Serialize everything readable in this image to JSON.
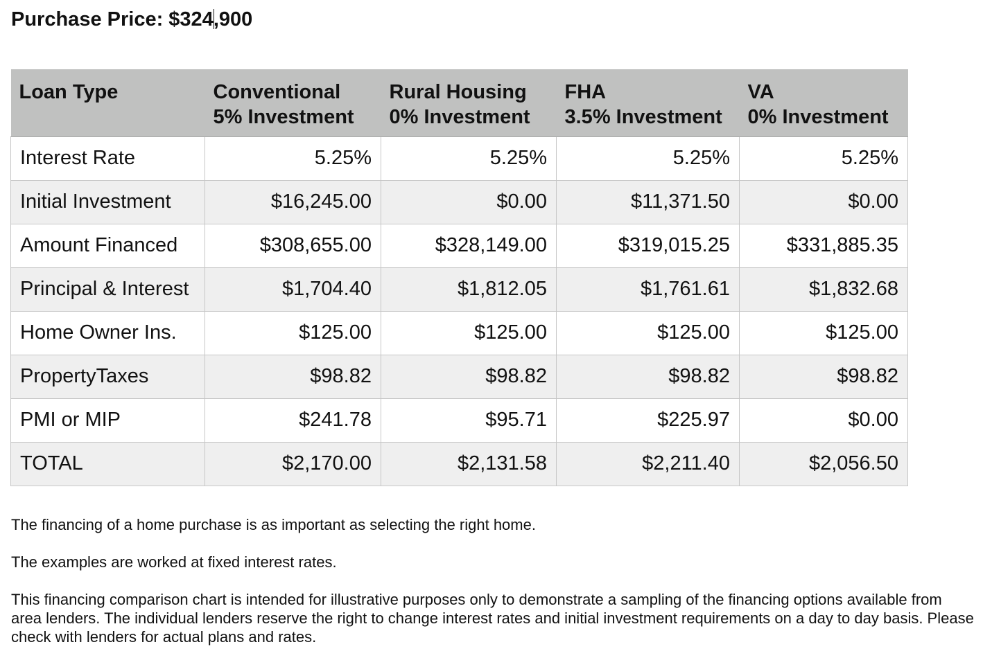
{
  "title": {
    "before_caret": "Purchase Price: $324",
    "after_caret": ",900"
  },
  "table": {
    "header_label": "Loan Type",
    "columns": [
      {
        "name": "Conventional",
        "investment": "5% Investment"
      },
      {
        "name": "Rural Housing",
        "investment": "0% Investment"
      },
      {
        "name": "FHA",
        "investment": "3.5% Investment"
      },
      {
        "name": "VA",
        "investment": "0% Investment"
      }
    ],
    "rows": [
      {
        "label": "Interest Rate",
        "values": [
          "5.25%",
          "5.25%",
          "5.25%",
          "5.25%"
        ]
      },
      {
        "label": "Initial Investment",
        "values": [
          "$16,245.00",
          "$0.00",
          "$11,371.50",
          "$0.00"
        ]
      },
      {
        "label": "Amount Financed",
        "values": [
          "$308,655.00",
          "$328,149.00",
          "$319,015.25",
          "$331,885.35"
        ]
      },
      {
        "label": "Principal & Interest",
        "values": [
          "$1,704.40",
          "$1,812.05",
          "$1,761.61",
          "$1,832.68"
        ]
      },
      {
        "label": "Home Owner Ins.",
        "values": [
          "$125.00",
          "$125.00",
          "$125.00",
          "$125.00"
        ]
      },
      {
        "label": "PropertyTaxes",
        "values": [
          "$98.82",
          "$98.82",
          "$98.82",
          "$98.82"
        ]
      },
      {
        "label": "PMI or MIP",
        "values": [
          "$241.78",
          "$95.71",
          "$225.97",
          "$0.00"
        ]
      },
      {
        "label": "TOTAL",
        "values": [
          "$2,170.00",
          "$2,131.58",
          "$2,211.40",
          "$2,056.50"
        ]
      }
    ]
  },
  "notes": [
    "The financing of a home purchase is as important as selecting the right home.",
    "The examples are worked at fixed interest rates.",
    "This financing comparison chart is intended for illustrative purposes only to demonstrate a sampling of the financing options available from area lenders. The individual lenders reserve the right to change interest rates and initial investment requirements on a day to day basis. Please check with lenders for actual plans and rates."
  ],
  "colors": {
    "header_background": "#c0c1c0",
    "alt_row_background": "#efefef",
    "border": "#c6c6c6"
  }
}
